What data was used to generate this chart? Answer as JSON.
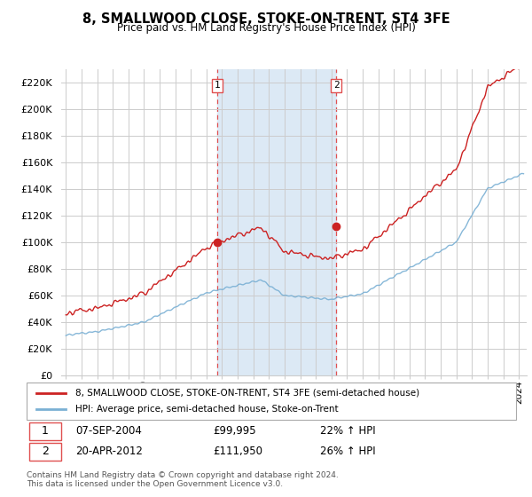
{
  "title": "8, SMALLWOOD CLOSE, STOKE-ON-TRENT, ST4 3FE",
  "subtitle": "Price paid vs. HM Land Registry's House Price Index (HPI)",
  "ylabel_ticks": [
    0,
    20000,
    40000,
    60000,
    80000,
    100000,
    120000,
    140000,
    160000,
    180000,
    200000,
    220000
  ],
  "ylabel_labels": [
    "£0",
    "£20K",
    "£40K",
    "£60K",
    "£80K",
    "£100K",
    "£120K",
    "£140K",
    "£160K",
    "£180K",
    "£200K",
    "£220K"
  ],
  "ylim": [
    0,
    230000
  ],
  "xlim_start": 1994.7,
  "xlim_end": 2024.5,
  "sale1_x": 2004.69,
  "sale1_y": 99995,
  "sale2_x": 2012.31,
  "sale2_y": 111950,
  "sale1_label": "1",
  "sale2_label": "2",
  "sale1_date": "07-SEP-2004",
  "sale1_price": "£99,995",
  "sale1_hpi": "22% ↑ HPI",
  "sale2_date": "20-APR-2012",
  "sale2_price": "£111,950",
  "sale2_hpi": "26% ↑ HPI",
  "shaded_color": "#dce9f5",
  "vline_color": "#e05050",
  "hpi_line_color": "#7ab0d4",
  "price_line_color": "#cc2222",
  "grid_color": "#cccccc",
  "background_color": "#ffffff",
  "legend_label_price": "8, SMALLWOOD CLOSE, STOKE-ON-TRENT, ST4 3FE (semi-detached house)",
  "legend_label_hpi": "HPI: Average price, semi-detached house, Stoke-on-Trent",
  "footer1": "Contains HM Land Registry data © Crown copyright and database right 2024.",
  "footer2": "This data is licensed under the Open Government Licence v3.0."
}
